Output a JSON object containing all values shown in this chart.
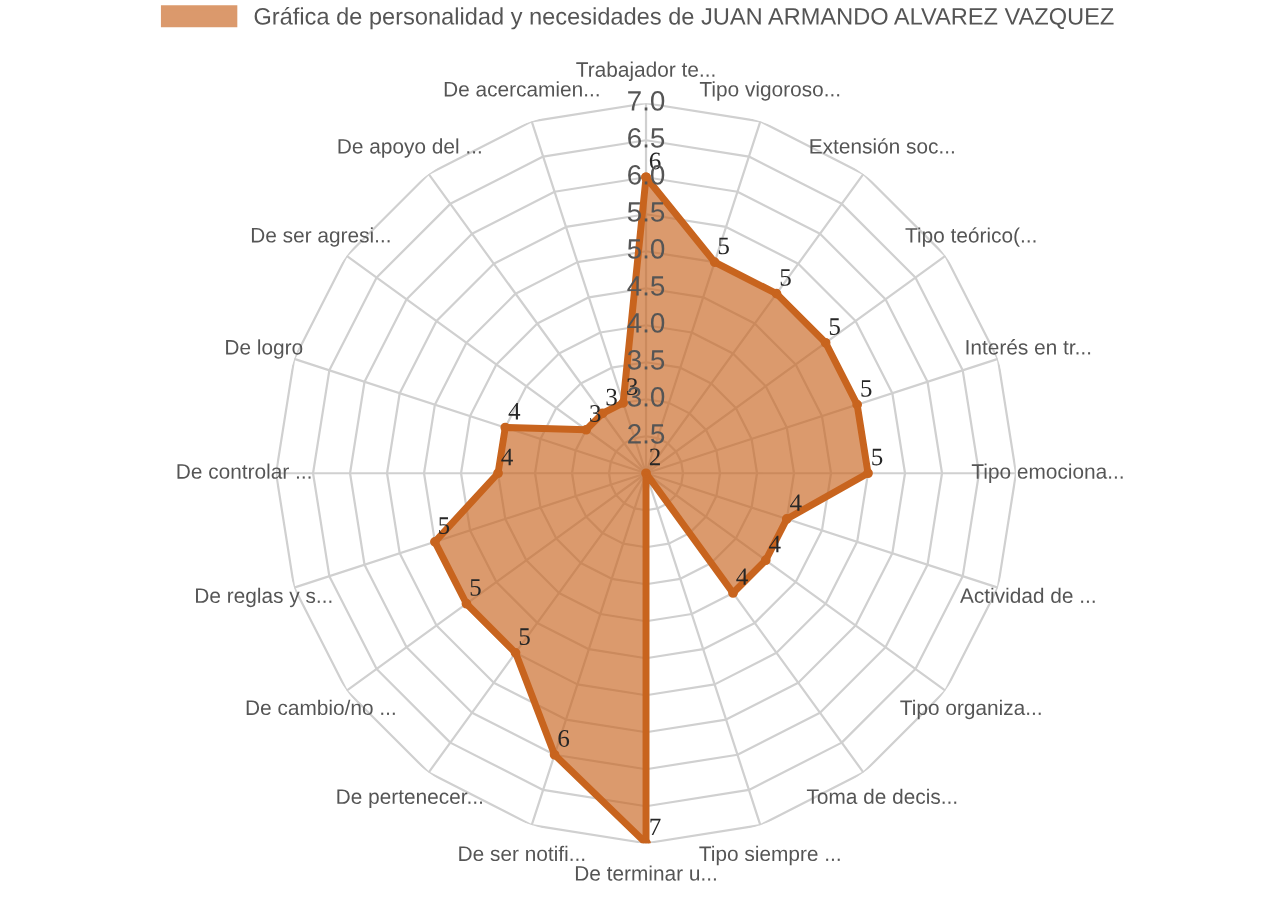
{
  "chart_data": {
    "type": "radar",
    "categories": [
      "Trabajador te...",
      "Tipo vigoroso...",
      "Extensión soc...",
      "Tipo teórico(...",
      "Interés en tr...",
      "Tipo emociona...",
      "Actividad de ...",
      "Tipo organiza...",
      "Toma de decis...",
      "Tipo siempre ...",
      "De terminar u...",
      "De ser notifi...",
      "De pertenecer...",
      "De cambio/no ...",
      "De reglas y s...",
      "De controlar ...",
      "De logro",
      "De ser agresi...",
      "De apoyo del ...",
      "De acercamien..."
    ],
    "series": [
      {
        "name": "Gráfica de personalidad y necesidades de JUAN ARMANDO ALVAREZ VAZQUEZ",
        "color": "#c8641e",
        "values": [
          6,
          5,
          5,
          5,
          5,
          5,
          4,
          4,
          4,
          2,
          7,
          6,
          5,
          5,
          5,
          4,
          4,
          3,
          3,
          3
        ]
      }
    ],
    "ylim": [
      2,
      7
    ],
    "yticks": [
      {
        "value": 2.5,
        "label": "2.5"
      },
      {
        "value": 3,
        "label": "3.0"
      },
      {
        "value": 3.5,
        "label": "3.5"
      },
      {
        "value": 4,
        "label": "4.0"
      },
      {
        "value": 4.5,
        "label": "4.5"
      },
      {
        "value": 5,
        "label": "5.0"
      },
      {
        "value": 5.5,
        "label": "5.5"
      },
      {
        "value": 6,
        "label": "6.0"
      },
      {
        "value": 6.5,
        "label": "6.5"
      },
      {
        "value": 7,
        "label": "7.0"
      }
    ],
    "data_labels": true,
    "grid": true,
    "legend": "top",
    "marker": "circle"
  }
}
